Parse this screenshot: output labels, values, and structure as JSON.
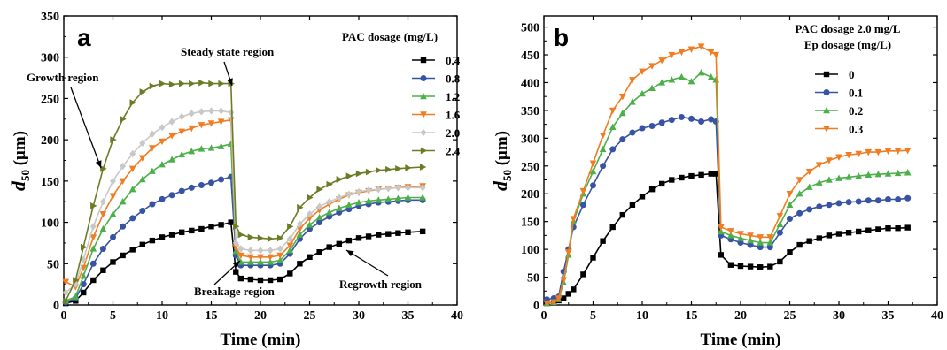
{
  "chart_data": [
    {
      "type": "line",
      "panel_label": "a",
      "xlabel": "Time (min)",
      "ylabel_main": "d",
      "ylabel_sub": "50",
      "ylabel_unit": " (μm)",
      "xlim": [
        0,
        40
      ],
      "ylim": [
        0,
        350
      ],
      "xticks": [
        0,
        5,
        10,
        15,
        20,
        25,
        30,
        35,
        40
      ],
      "yticks": [
        0,
        50,
        100,
        150,
        200,
        250,
        300,
        350
      ],
      "grid": false,
      "legend_placement": "top-right",
      "legend_title": [
        "PAC dosage (mg/L)"
      ],
      "annotations": [
        {
          "text": "Steady state region"
        },
        {
          "text": "Growth region"
        },
        {
          "text": "Breakage region"
        },
        {
          "text": "Regrowth region"
        }
      ],
      "series": [
        {
          "name": "0.4",
          "color": "#000000",
          "marker": "square",
          "x": [
            0.2,
            1.2,
            2,
            3,
            4,
            5,
            6,
            7,
            8,
            9,
            10,
            11,
            12,
            13,
            14,
            15,
            16,
            17,
            17.5,
            18,
            19,
            20,
            21,
            22,
            23,
            24,
            25,
            26,
            27,
            28,
            29,
            30,
            31,
            32,
            33,
            34,
            35,
            36.5
          ],
          "y": [
            2,
            5,
            15,
            30,
            42,
            52,
            60,
            67,
            73,
            78,
            82,
            85,
            88,
            90,
            92,
            95,
            97,
            100,
            40,
            32,
            31,
            30,
            30,
            31,
            38,
            50,
            58,
            64,
            70,
            74,
            78,
            81,
            83,
            85,
            86,
            87,
            88,
            89
          ]
        },
        {
          "name": "0.8",
          "color": "#3853a4",
          "marker": "circle",
          "x": [
            0.2,
            1.2,
            2,
            3,
            4,
            5,
            6,
            7,
            8,
            9,
            10,
            11,
            12,
            13,
            14,
            15,
            16,
            17,
            17.5,
            18,
            19,
            20,
            21,
            22,
            23,
            24,
            25,
            26,
            27,
            28,
            29,
            30,
            31,
            32,
            33,
            34,
            35,
            36.5
          ],
          "y": [
            3,
            8,
            25,
            50,
            68,
            82,
            95,
            105,
            114,
            122,
            128,
            133,
            138,
            142,
            145,
            148,
            152,
            155,
            60,
            48,
            48,
            48,
            48,
            50,
            62,
            80,
            92,
            100,
            107,
            112,
            116,
            120,
            122,
            124,
            125,
            126,
            127,
            127
          ]
        },
        {
          "name": "1.2",
          "color": "#4cb04a",
          "marker": "triangle-up",
          "x": [
            0.2,
            1.2,
            2,
            3,
            4,
            5,
            6,
            7,
            8,
            9,
            10,
            11,
            12,
            13,
            14,
            15,
            16,
            17,
            17.5,
            18,
            19,
            20,
            21,
            22,
            23,
            24,
            25,
            26,
            27,
            28,
            29,
            30,
            31,
            32,
            33,
            34,
            35,
            36.5
          ],
          "y": [
            5,
            10,
            35,
            68,
            92,
            110,
            125,
            140,
            152,
            162,
            170,
            176,
            182,
            186,
            189,
            190,
            192,
            195,
            65,
            52,
            52,
            52,
            52,
            54,
            66,
            85,
            97,
            106,
            112,
            117,
            121,
            124,
            126,
            127,
            128,
            129,
            130,
            130
          ]
        },
        {
          "name": "1.6",
          "color": "#f07d23",
          "marker": "triangle-down",
          "x": [
            0.2,
            1.2,
            2,
            3,
            4,
            5,
            6,
            7,
            8,
            9,
            10,
            11,
            12,
            13,
            14,
            15,
            16,
            17,
            17.5,
            18,
            19,
            20,
            21,
            22,
            23,
            24,
            25,
            26,
            27,
            28,
            29,
            30,
            31,
            32,
            33,
            34,
            35,
            36.5
          ],
          "y": [
            28,
            22,
            45,
            82,
            110,
            132,
            150,
            165,
            178,
            190,
            198,
            205,
            210,
            214,
            218,
            220,
            222,
            224,
            70,
            60,
            58,
            58,
            58,
            60,
            72,
            92,
            105,
            115,
            122,
            128,
            133,
            136,
            138,
            140,
            141,
            142,
            143,
            144
          ]
        },
        {
          "name": "2.0",
          "color": "#c8c8c8",
          "marker": "diamond",
          "x": [
            0.2,
            1.2,
            2,
            3,
            4,
            5,
            6,
            7,
            8,
            9,
            10,
            11,
            12,
            13,
            14,
            15,
            16,
            17,
            17.5,
            18,
            19,
            20,
            21,
            22,
            23,
            24,
            25,
            26,
            27,
            28,
            29,
            30,
            31,
            32,
            33,
            34,
            35,
            36.5
          ],
          "y": [
            15,
            25,
            55,
            95,
            125,
            150,
            168,
            183,
            196,
            207,
            215,
            222,
            228,
            232,
            234,
            235,
            235,
            233,
            75,
            68,
            66,
            66,
            66,
            68,
            80,
            98,
            110,
            119,
            125,
            130,
            134,
            137,
            139,
            140,
            141,
            142,
            142,
            142
          ]
        },
        {
          "name": "2.4",
          "color": "#6a7d24",
          "marker": "triangle-right",
          "x": [
            0.2,
            1.2,
            2,
            3,
            4,
            5,
            6,
            7,
            8,
            9,
            10,
            11,
            12,
            13,
            14,
            15,
            16,
            17,
            17.5,
            18,
            19,
            20,
            21,
            22,
            23,
            24,
            25,
            26,
            27,
            28,
            29,
            30,
            31,
            32,
            33,
            34,
            35,
            36.5
          ],
          "y": [
            5,
            30,
            70,
            120,
            165,
            200,
            225,
            245,
            258,
            265,
            268,
            267,
            268,
            268,
            269,
            268,
            268,
            268,
            95,
            85,
            82,
            81,
            80,
            81,
            95,
            118,
            130,
            140,
            146,
            152,
            156,
            159,
            161,
            163,
            164,
            165,
            166,
            167
          ]
        }
      ]
    },
    {
      "type": "line",
      "panel_label": "b",
      "xlabel": "Time (min)",
      "ylabel_main": "d",
      "ylabel_sub": "50",
      "ylabel_unit": " (μm)",
      "xlim": [
        0,
        40
      ],
      "ylim": [
        0,
        520
      ],
      "xticks": [
        0,
        5,
        10,
        15,
        20,
        25,
        30,
        35,
        40
      ],
      "yticks": [
        0,
        50,
        100,
        150,
        200,
        250,
        300,
        350,
        400,
        450,
        500
      ],
      "grid": false,
      "legend_placement": "top-right",
      "legend_title": [
        "PAC  dosage 2.0 mg/L",
        "Ep  dosage (mg/L)"
      ],
      "series": [
        {
          "name": "0",
          "color": "#000000",
          "marker": "square",
          "x": [
            0.3,
            1,
            1.5,
            2,
            2.5,
            3,
            4,
            5,
            6,
            7,
            8,
            9,
            10,
            11,
            12,
            13,
            14,
            15,
            16,
            17,
            17.5,
            18,
            19,
            20,
            21,
            22,
            23,
            24,
            25,
            26,
            27,
            28,
            29,
            30,
            31,
            32,
            33,
            34,
            35,
            36,
            37
          ],
          "y": [
            3,
            5,
            8,
            12,
            20,
            28,
            55,
            85,
            115,
            140,
            162,
            180,
            195,
            208,
            218,
            225,
            229,
            232,
            234,
            236,
            236,
            90,
            72,
            70,
            69,
            68,
            69,
            78,
            95,
            108,
            115,
            120,
            125,
            128,
            130,
            132,
            134,
            136,
            138,
            138,
            139
          ]
        },
        {
          "name": "0.1",
          "color": "#3853a4",
          "marker": "circle",
          "x": [
            0.3,
            1,
            1.5,
            2,
            2.5,
            3,
            4,
            5,
            6,
            7,
            8,
            9,
            10,
            11,
            12,
            13,
            14,
            15,
            16,
            17,
            17.5,
            18,
            19,
            20,
            21,
            22,
            23,
            24,
            25,
            26,
            27,
            28,
            29,
            30,
            31,
            32,
            33,
            34,
            35,
            36,
            37
          ],
          "y": [
            10,
            12,
            15,
            60,
            100,
            140,
            180,
            215,
            250,
            280,
            298,
            310,
            318,
            322,
            328,
            333,
            338,
            335,
            330,
            334,
            330,
            125,
            118,
            112,
            108,
            104,
            104,
            130,
            155,
            165,
            172,
            177,
            180,
            183,
            185,
            186,
            188,
            188,
            190,
            190,
            192
          ]
        },
        {
          "name": "0.2",
          "color": "#4cb04a",
          "marker": "triangle-up",
          "x": [
            0.3,
            1,
            1.5,
            2,
            2.5,
            3,
            4,
            5,
            6,
            7,
            8,
            9,
            10,
            11,
            12,
            13,
            14,
            15,
            16,
            17,
            17.5,
            18,
            19,
            20,
            21,
            22,
            23,
            24,
            25,
            26,
            27,
            28,
            29,
            30,
            31,
            32,
            33,
            34,
            35,
            36,
            37
          ],
          "y": [
            3,
            5,
            10,
            40,
            90,
            150,
            200,
            240,
            280,
            320,
            345,
            365,
            380,
            390,
            400,
            405,
            410,
            402,
            418,
            410,
            405,
            132,
            125,
            120,
            116,
            112,
            112,
            145,
            180,
            200,
            212,
            220,
            225,
            228,
            230,
            232,
            234,
            235,
            236,
            237,
            238
          ]
        },
        {
          "name": "0.3",
          "color": "#f07d23",
          "marker": "triangle-down",
          "x": [
            0.3,
            1,
            1.5,
            2,
            2.5,
            3,
            4,
            5,
            6,
            7,
            8,
            9,
            10,
            11,
            12,
            13,
            14,
            15,
            16,
            17,
            17.5,
            18,
            19,
            20,
            21,
            22,
            23,
            24,
            25,
            26,
            27,
            28,
            29,
            30,
            31,
            32,
            33,
            34,
            35,
            36,
            37
          ],
          "y": [
            3,
            5,
            12,
            45,
            95,
            155,
            205,
            255,
            305,
            350,
            375,
            405,
            420,
            430,
            440,
            450,
            455,
            460,
            465,
            455,
            450,
            140,
            133,
            128,
            125,
            122,
            122,
            160,
            200,
            225,
            240,
            252,
            260,
            266,
            270,
            272,
            275,
            275,
            277,
            277,
            278
          ]
        }
      ]
    }
  ]
}
